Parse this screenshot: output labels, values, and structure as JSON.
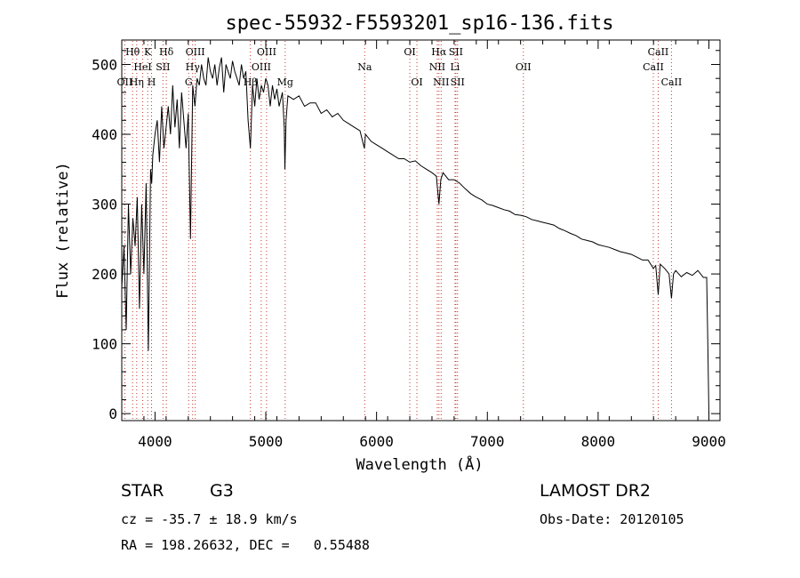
{
  "chart_data": {
    "type": "line",
    "title": "spec-55932-F5593201_sp16-136.fits",
    "xlabel": "Wavelength (Å)",
    "ylabel": "Flux (relative)",
    "xlim": [
      3700,
      9100
    ],
    "ylim": [
      -10,
      535
    ],
    "x_ticks": [
      4000,
      5000,
      6000,
      7000,
      8000,
      9000
    ],
    "y_ticks": [
      0,
      100,
      200,
      300,
      400,
      500
    ],
    "x": [
      3700,
      3720,
      3740,
      3760,
      3780,
      3800,
      3820,
      3840,
      3860,
      3880,
      3900,
      3920,
      3940,
      3960,
      3970,
      3980,
      4000,
      4020,
      4040,
      4060,
      4080,
      4100,
      4120,
      4140,
      4160,
      4180,
      4200,
      4220,
      4240,
      4260,
      4280,
      4300,
      4320,
      4340,
      4360,
      4380,
      4400,
      4420,
      4440,
      4460,
      4480,
      4500,
      4520,
      4540,
      4560,
      4580,
      4600,
      4620,
      4640,
      4660,
      4680,
      4700,
      4720,
      4740,
      4760,
      4780,
      4800,
      4820,
      4840,
      4861,
      4880,
      4900,
      4920,
      4940,
      4960,
      4980,
      5000,
      5020,
      5040,
      5060,
      5080,
      5100,
      5120,
      5150,
      5167,
      5172,
      5183,
      5200,
      5250,
      5300,
      5350,
      5400,
      5450,
      5500,
      5550,
      5600,
      5650,
      5700,
      5750,
      5800,
      5850,
      5890,
      5900,
      5950,
      6000,
      6050,
      6100,
      6150,
      6200,
      6250,
      6300,
      6350,
      6400,
      6450,
      6500,
      6540,
      6563,
      6580,
      6600,
      6650,
      6700,
      6750,
      6800,
      6850,
      6900,
      6950,
      7000,
      7050,
      7100,
      7150,
      7200,
      7250,
      7300,
      7350,
      7400,
      7450,
      7500,
      7550,
      7600,
      7650,
      7700,
      7750,
      7800,
      7850,
      7900,
      7950,
      8000,
      8050,
      8100,
      8150,
      8200,
      8250,
      8300,
      8350,
      8400,
      8450,
      8498,
      8520,
      8542,
      8560,
      8600,
      8640,
      8662,
      8680,
      8700,
      8750,
      8800,
      8850,
      8900,
      8950,
      8980,
      8990,
      9000
    ],
    "y": [
      180,
      240,
      120,
      300,
      200,
      280,
      240,
      310,
      150,
      300,
      200,
      330,
      90,
      350,
      330,
      370,
      400,
      420,
      360,
      440,
      380,
      410,
      440,
      400,
      470,
      410,
      450,
      380,
      460,
      420,
      380,
      430,
      250,
      470,
      440,
      480,
      470,
      500,
      480,
      470,
      510,
      490,
      480,
      500,
      470,
      495,
      510,
      460,
      500,
      490,
      480,
      505,
      490,
      480,
      470,
      500,
      480,
      490,
      420,
      380,
      470,
      440,
      480,
      450,
      470,
      460,
      480,
      470,
      440,
      470,
      450,
      465,
      440,
      460,
      410,
      350,
      420,
      455,
      450,
      455,
      440,
      445,
      445,
      430,
      435,
      425,
      430,
      420,
      415,
      410,
      405,
      380,
      400,
      390,
      385,
      380,
      375,
      370,
      365,
      365,
      360,
      362,
      355,
      350,
      345,
      340,
      300,
      335,
      345,
      335,
      335,
      330,
      322,
      315,
      310,
      306,
      300,
      298,
      295,
      292,
      290,
      285,
      284,
      282,
      278,
      276,
      274,
      272,
      270,
      265,
      262,
      258,
      255,
      250,
      248,
      246,
      242,
      240,
      238,
      235,
      232,
      230,
      228,
      224,
      220,
      220,
      208,
      212,
      170,
      214,
      208,
      200,
      165,
      200,
      205,
      196,
      202,
      198,
      205,
      195,
      195,
      100,
      0
    ],
    "lines": [
      {
        "label": "OII",
        "x": 3727,
        "row": 3
      },
      {
        "label": "Hθ",
        "x": 3798,
        "row": 1
      },
      {
        "label": "Hη",
        "x": 3835,
        "row": 3
      },
      {
        "label": "HeI",
        "x": 3889,
        "row": 2
      },
      {
        "label": "K",
        "x": 3934,
        "row": 1
      },
      {
        "label": "SII",
        "x": 4072,
        "row": 2
      },
      {
        "label": "H",
        "x": 3969,
        "row": 3
      },
      {
        "label": "Hδ",
        "x": 4102,
        "row": 1
      },
      {
        "label": "OIII",
        "x": 4363,
        "row": 1
      },
      {
        "label": "Hγ",
        "x": 4340,
        "row": 2
      },
      {
        "label": "G",
        "x": 4304,
        "row": 3
      },
      {
        "label": "OIII",
        "x": 5007,
        "row": 1
      },
      {
        "label": "OIII",
        "x": 4959,
        "row": 2
      },
      {
        "label": "Hβ",
        "x": 4861,
        "row": 3
      },
      {
        "label": "Mg",
        "x": 5175,
        "row": 3
      },
      {
        "label": "Na",
        "x": 5893,
        "row": 2
      },
      {
        "label": "OI",
        "x": 6300,
        "row": 1
      },
      {
        "label": "OI",
        "x": 6364,
        "row": 3
      },
      {
        "label": "Hα",
        "x": 6563,
        "row": 1
      },
      {
        "label": "SII",
        "x": 6716,
        "row": 1
      },
      {
        "label": "NII",
        "x": 6548,
        "row": 2
      },
      {
        "label": "Li",
        "x": 6708,
        "row": 2
      },
      {
        "label": "NII",
        "x": 6583,
        "row": 3
      },
      {
        "label": "SII",
        "x": 6731,
        "row": 3
      },
      {
        "label": "OII",
        "x": 7325,
        "row": 2
      },
      {
        "label": "CaII",
        "x": 8542,
        "row": 1
      },
      {
        "label": "CaII",
        "x": 8498,
        "row": 2
      },
      {
        "label": "CaII",
        "x": 8662,
        "row": 3
      }
    ]
  },
  "info": {
    "object_type": "STAR",
    "subclass": "G3",
    "cz": "cz = -35.7 ± 18.9 km/s",
    "coords": "RA = 198.26632, DEC =   0.55488",
    "survey": "LAMOST DR2",
    "obs_date": "Obs-Date: 20120105"
  }
}
